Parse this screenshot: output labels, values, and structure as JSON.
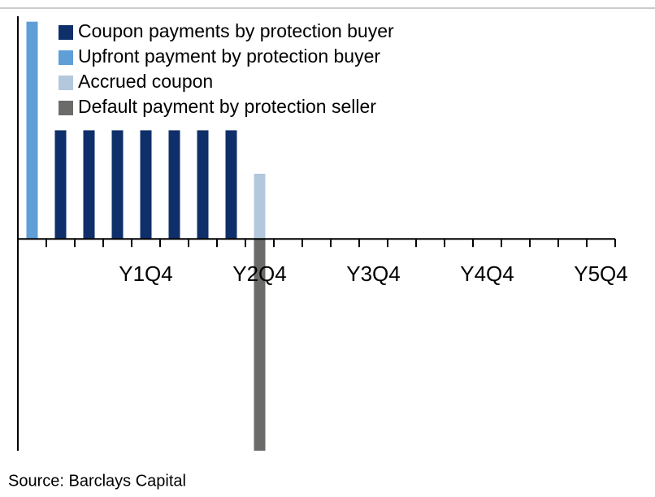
{
  "chart_data": {
    "type": "bar",
    "categories": [
      null,
      null,
      null,
      null,
      "Y1Q4",
      null,
      null,
      null,
      "Y2Q4",
      null,
      null,
      null,
      "Y3Q4",
      null,
      null,
      null,
      "Y4Q4",
      null,
      null,
      null,
      "Y5Q4"
    ],
    "series": [
      {
        "name": "Coupon payments by protection buyer",
        "color": "#0f2f6a",
        "values": [
          null,
          1,
          1,
          1,
          1,
          1,
          1,
          1,
          null,
          null,
          null,
          null,
          null,
          null,
          null,
          null,
          null,
          null,
          null,
          null,
          null
        ]
      },
      {
        "name": "Upfront payment by protection buyer",
        "color": "#5f9ed6",
        "values": [
          2,
          null,
          null,
          null,
          null,
          null,
          null,
          null,
          null,
          null,
          null,
          null,
          null,
          null,
          null,
          null,
          null,
          null,
          null,
          null,
          null
        ]
      },
      {
        "name": "Accrued coupon",
        "color": "#b3c8dc",
        "values": [
          null,
          null,
          null,
          null,
          null,
          null,
          null,
          null,
          0.6,
          null,
          null,
          null,
          null,
          null,
          null,
          null,
          null,
          null,
          null,
          null,
          null
        ]
      },
      {
        "name": "Default payment by protection seller",
        "color": "#6b6b69",
        "values": [
          null,
          null,
          null,
          null,
          null,
          null,
          null,
          null,
          -1.95,
          null,
          null,
          null,
          null,
          null,
          null,
          null,
          null,
          null,
          null,
          null,
          null
        ]
      }
    ],
    "ylim": [
      -1.95,
      2.05
    ],
    "legend": "top-left",
    "source": "Source: Barclays Capital"
  }
}
